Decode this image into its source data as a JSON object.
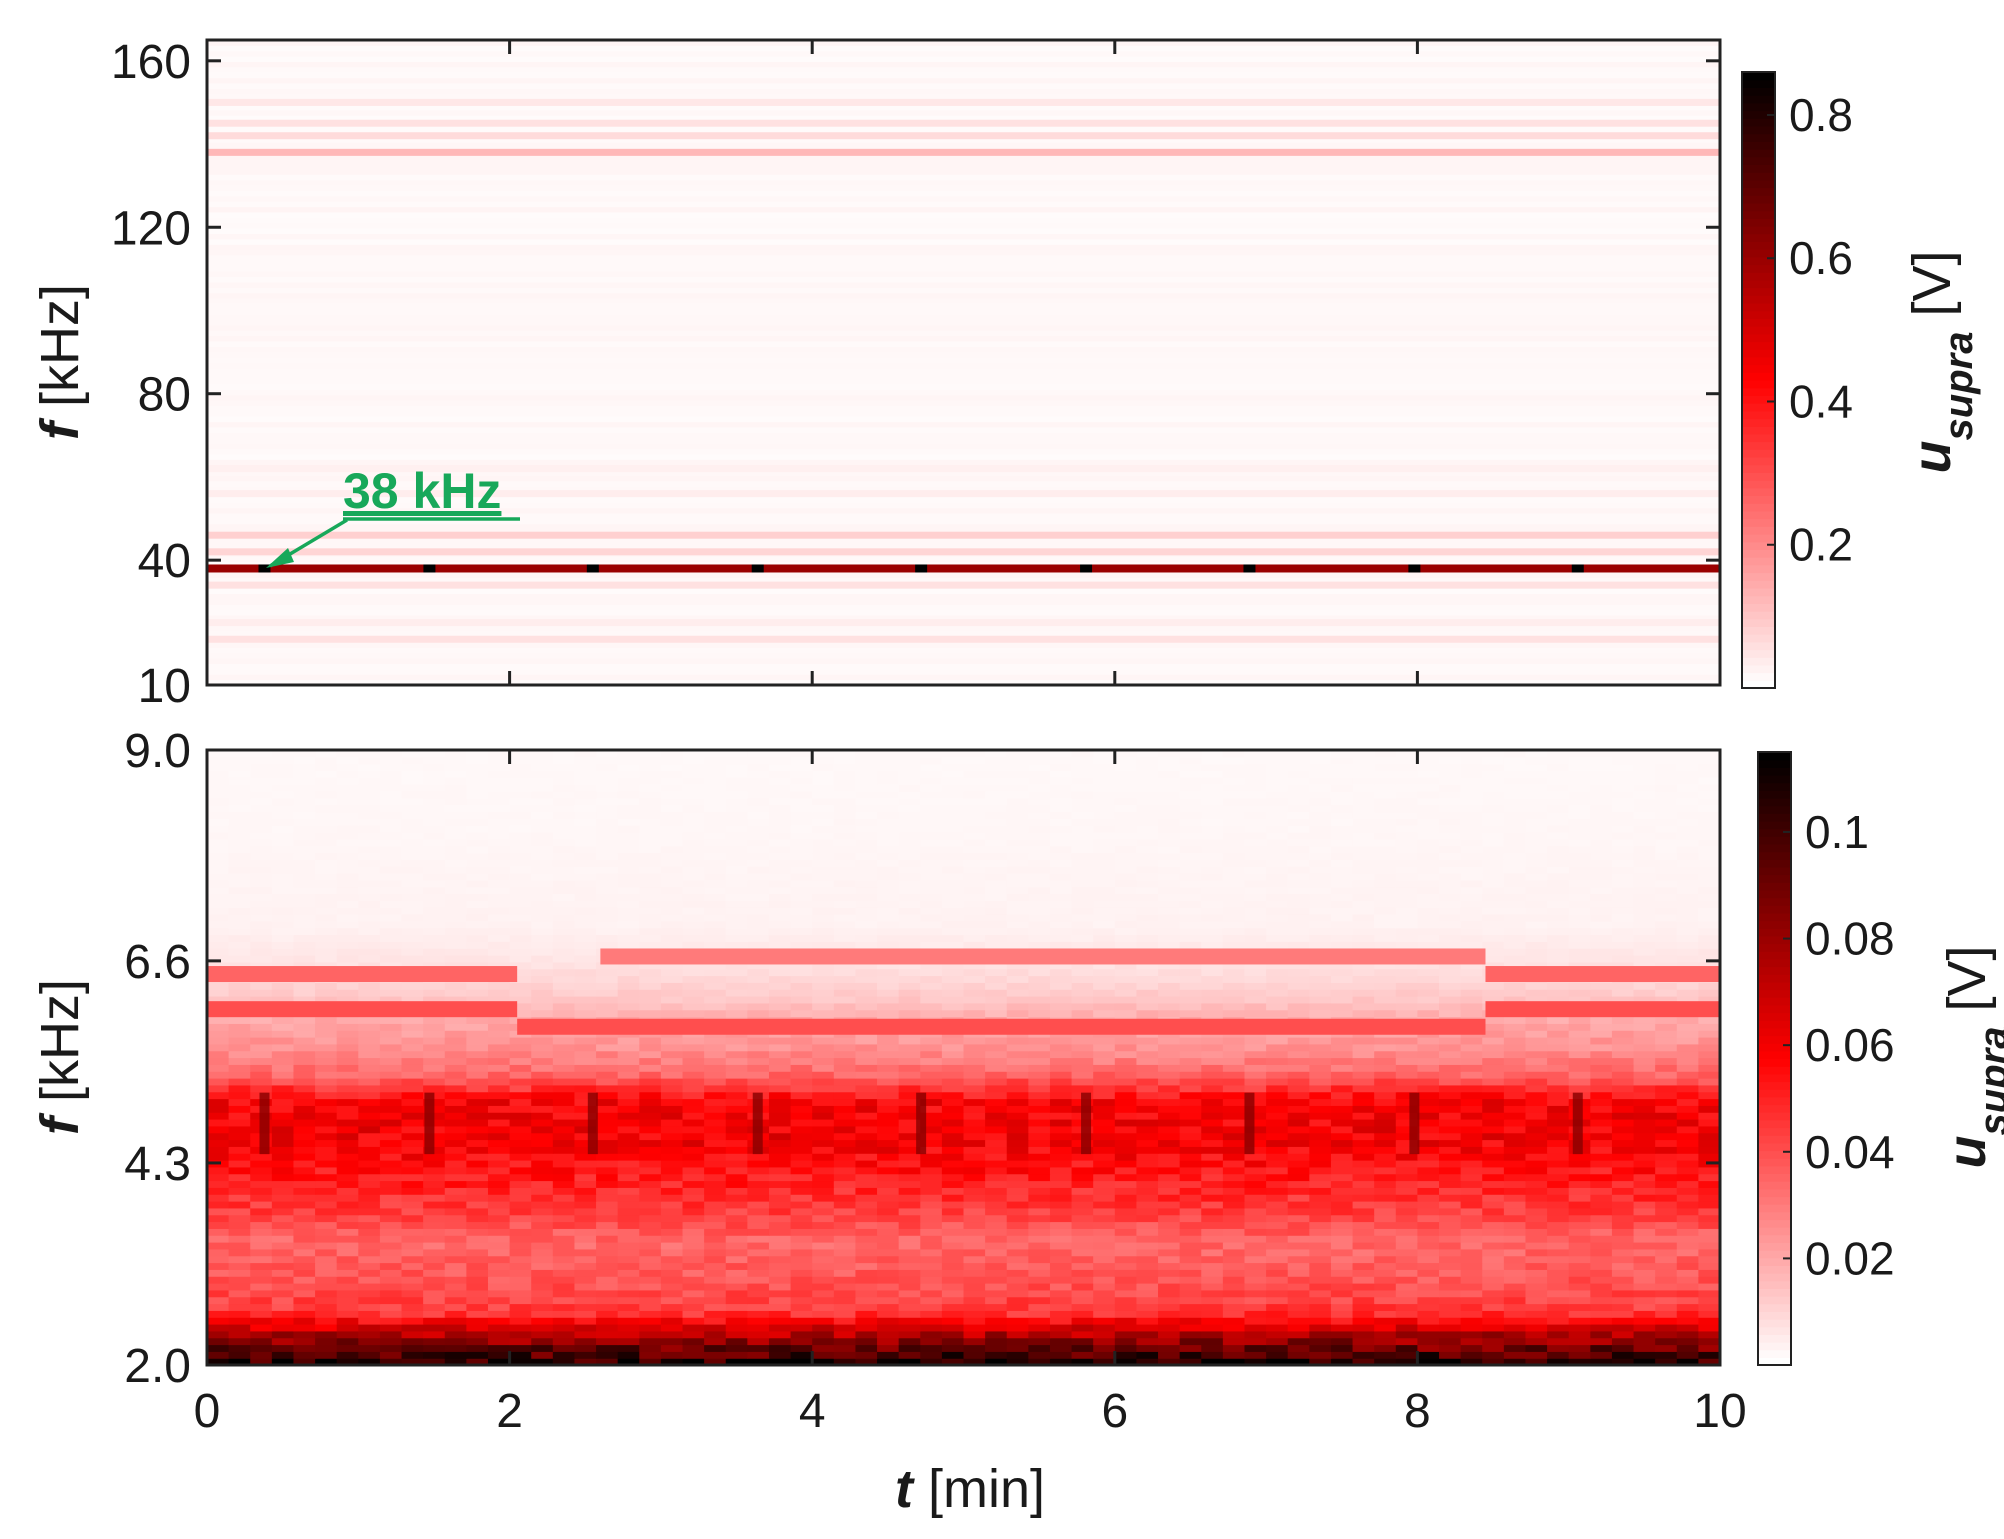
{
  "chart_data": [
    {
      "type": "heatmap",
      "panel": "top",
      "ylabel_var": "f",
      "ylabel_unit": " [kHz]",
      "xlabel_var": "",
      "xlabel_unit": "",
      "xlim": [
        0,
        10
      ],
      "ylim": [
        10,
        165
      ],
      "x_ticks": [
        0,
        2,
        4,
        6,
        8,
        10
      ],
      "x_tick_labels": [
        "",
        "",
        "",
        "",
        "",
        ""
      ],
      "y_ticks": [
        10,
        40,
        80,
        120,
        160
      ],
      "y_tick_labels": [
        "10",
        "40",
        "80",
        "120",
        "160"
      ],
      "colorbar": {
        "label_var": "u",
        "label_sub": "supra",
        "label_unit": " [V]",
        "range": [
          0,
          0.86
        ],
        "ticks": [
          0.2,
          0.4,
          0.6,
          0.8
        ],
        "tick_labels": [
          "0.2",
          "0.4",
          "0.6",
          "0.8"
        ],
        "colormap": [
          "#ffffff",
          "#ff0000",
          "#000000"
        ]
      },
      "bands": [
        {
          "f": 38,
          "value": 0.6
        },
        {
          "f": 138,
          "value": 0.12
        },
        {
          "f": 142,
          "value": 0.06
        },
        {
          "f": 145,
          "value": 0.05
        },
        {
          "f": 150,
          "value": 0.04
        },
        {
          "f": 46,
          "value": 0.08
        },
        {
          "f": 42,
          "value": 0.07
        },
        {
          "f": 34,
          "value": 0.05
        },
        {
          "f": 21,
          "value": 0.05
        },
        {
          "f": 25,
          "value": 0.03
        },
        {
          "f": 56,
          "value": 0.03
        },
        {
          "f": 62,
          "value": 0.025
        }
      ],
      "peaks": {
        "f": 38,
        "t": [
          0.38,
          1.47,
          2.55,
          3.64,
          4.72,
          5.81,
          6.89,
          7.98,
          9.06
        ],
        "value": 0.86
      },
      "annotation": {
        "text": "38 kHz",
        "t": 0.38,
        "f": 38
      }
    },
    {
      "type": "heatmap",
      "panel": "bottom",
      "ylabel_var": "f",
      "ylabel_unit": " [kHz]",
      "xlabel_var": "t",
      "xlabel_unit": " [min]",
      "xlim": [
        0,
        10
      ],
      "ylim": [
        2.0,
        9.0
      ],
      "x_ticks": [
        0,
        2,
        4,
        6,
        8,
        10
      ],
      "x_tick_labels": [
        "0",
        "2",
        "4",
        "6",
        "8",
        "10"
      ],
      "y_ticks": [
        2.0,
        4.3,
        6.6,
        9.0
      ],
      "y_tick_labels": [
        "2.0",
        "4.3",
        "6.6",
        "9.0"
      ],
      "colorbar": {
        "label_var": "u",
        "label_sub": "supra",
        "label_unit": " [V]",
        "range": [
          0,
          0.115
        ],
        "ticks": [
          0.02,
          0.04,
          0.06,
          0.08,
          0.1
        ],
        "tick_labels": [
          "0.02",
          "0.04",
          "0.06",
          "0.08",
          "0.1"
        ],
        "colormap": [
          "#ffffff",
          "#ff0000",
          "#000000"
        ]
      },
      "frequency_profile": [
        {
          "f": 2.0,
          "value": 0.11
        },
        {
          "f": 2.2,
          "value": 0.09
        },
        {
          "f": 2.4,
          "value": 0.07
        },
        {
          "f": 2.6,
          "value": 0.045
        },
        {
          "f": 3.0,
          "value": 0.038
        },
        {
          "f": 3.4,
          "value": 0.034
        },
        {
          "f": 3.8,
          "value": 0.045
        },
        {
          "f": 4.3,
          "value": 0.055
        },
        {
          "f": 4.6,
          "value": 0.06
        },
        {
          "f": 5.0,
          "value": 0.058
        },
        {
          "f": 5.3,
          "value": 0.035
        },
        {
          "f": 5.6,
          "value": 0.025
        },
        {
          "f": 5.9,
          "value": 0.02
        },
        {
          "f": 6.2,
          "value": 0.012
        },
        {
          "f": 6.6,
          "value": 0.006
        },
        {
          "f": 7.0,
          "value": 0.003
        },
        {
          "f": 8.0,
          "value": 0.002
        },
        {
          "f": 9.0,
          "value": 0.0015
        }
      ],
      "switching_bands": [
        {
          "f": 6.05,
          "value": 0.04,
          "t_ranges": [
            [
              0,
              2.05
            ],
            [
              8.45,
              10
            ]
          ]
        },
        {
          "f": 6.45,
          "value": 0.035,
          "t_ranges": [
            [
              0,
              2.05
            ],
            [
              8.45,
              10
            ]
          ]
        },
        {
          "f": 5.85,
          "value": 0.04,
          "t_ranges": [
            [
              2.05,
              8.45
            ]
          ]
        },
        {
          "f": 6.65,
          "value": 0.03,
          "t_ranges": [
            [
              2.6,
              8.45
            ]
          ]
        }
      ],
      "vertical_streaks": {
        "t": [
          0.38,
          1.47,
          2.55,
          3.64,
          4.72,
          5.81,
          6.89,
          7.98,
          9.06
        ],
        "f_range": [
          4.4,
          5.1
        ],
        "extra_value": 0.025
      }
    }
  ]
}
